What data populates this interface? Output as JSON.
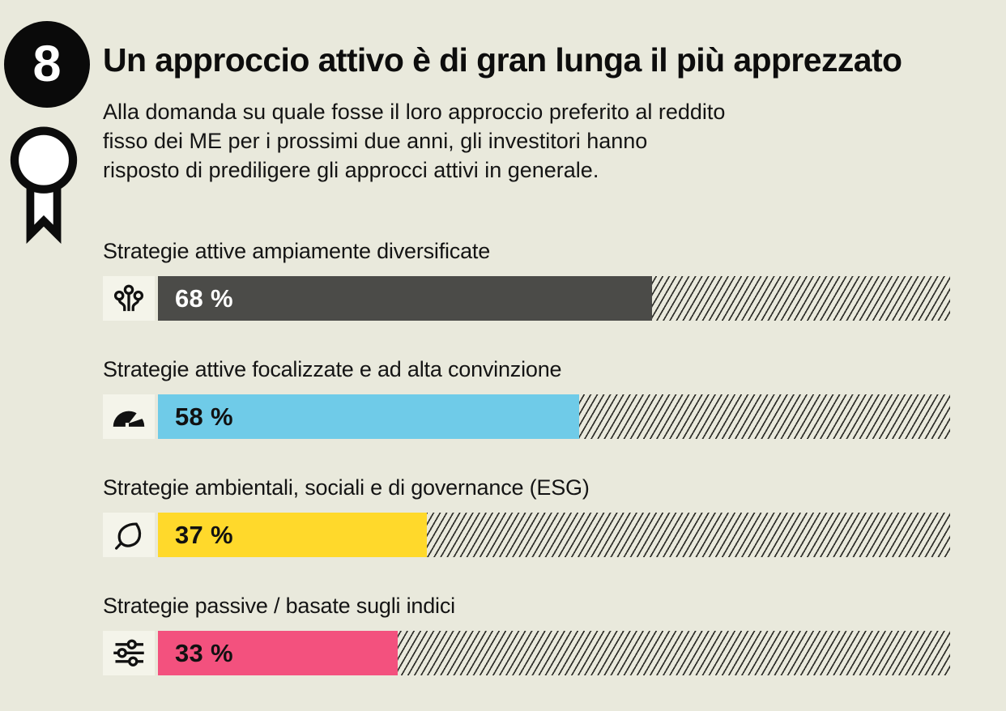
{
  "page": {
    "background": "#e9e9dc"
  },
  "badge": {
    "number": "8"
  },
  "header": {
    "title": "Un approccio attivo è di gran lunga il più apprezzato",
    "subtitle_lines": [
      "Alla domanda su quale fosse il loro approccio preferito al reddito",
      "fisso dei ME per i prossimi due anni, gli investitori hanno",
      "risposto di prediligere gli approcci attivi in generale."
    ]
  },
  "chart_data": {
    "type": "bar",
    "orientation": "horizontal",
    "unit": "%",
    "xlim": [
      0,
      100
    ],
    "track_max_percent": 109,
    "grid": false,
    "legend": false,
    "categories": [
      "Strategie attive ampiamente diversificate",
      "Strategie attive focalizzate e ad alta convinzione",
      "Strategie ambientali, sociali e di governance (ESG)",
      "Strategie passive / basate sugli indici"
    ],
    "values": [
      68,
      58,
      37,
      33
    ],
    "value_labels": [
      "68 %",
      "58 %",
      "37 %",
      "33 %"
    ],
    "colors": [
      "#4b4b48",
      "#6fcbe8",
      "#ffd92b",
      "#f3517e"
    ],
    "value_text_colors": [
      "#ffffff",
      "#111111",
      "#111111",
      "#111111"
    ],
    "icons": [
      "diversified-branches-icon",
      "gauge-icon",
      "leaf-icon",
      "sliders-icon"
    ],
    "hatch": {
      "line_color": "#2f2f2a",
      "background": "#e9e9dc"
    }
  }
}
